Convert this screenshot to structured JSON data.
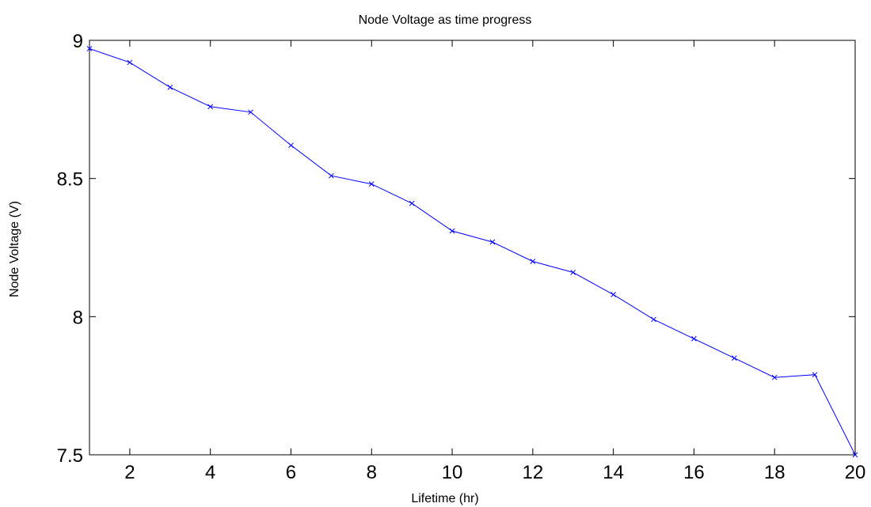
{
  "chart_data": {
    "type": "line",
    "title": "Node Voltage as time progress",
    "xlabel": "Lifetime (hr)",
    "ylabel": "Node Voltage (V)",
    "xlim": [
      1,
      20
    ],
    "ylim": [
      7.5,
      9
    ],
    "x_ticks": [
      2,
      4,
      6,
      8,
      10,
      12,
      14,
      16,
      18,
      20
    ],
    "x_tick_labels": [
      "2",
      "4",
      "6",
      "8",
      "10",
      "12",
      "14",
      "16",
      "18",
      "20"
    ],
    "y_ticks": [
      7.5,
      8,
      8.5,
      9
    ],
    "y_tick_labels": [
      "7.5",
      "8",
      "8.5",
      "9"
    ],
    "grid": false,
    "legend": "none",
    "marker": "x",
    "color": "#0000ff",
    "series": [
      {
        "x": [
          1,
          2,
          3,
          4,
          5,
          6,
          7,
          8,
          9,
          10,
          11,
          12,
          13,
          14,
          15,
          16,
          17,
          18,
          19,
          20
        ],
        "values": [
          8.97,
          8.92,
          8.83,
          8.76,
          8.74,
          8.62,
          8.51,
          8.48,
          8.41,
          8.31,
          8.27,
          8.2,
          8.16,
          8.08,
          7.99,
          7.92,
          7.85,
          7.78,
          7.79,
          7.5
        ]
      }
    ]
  }
}
